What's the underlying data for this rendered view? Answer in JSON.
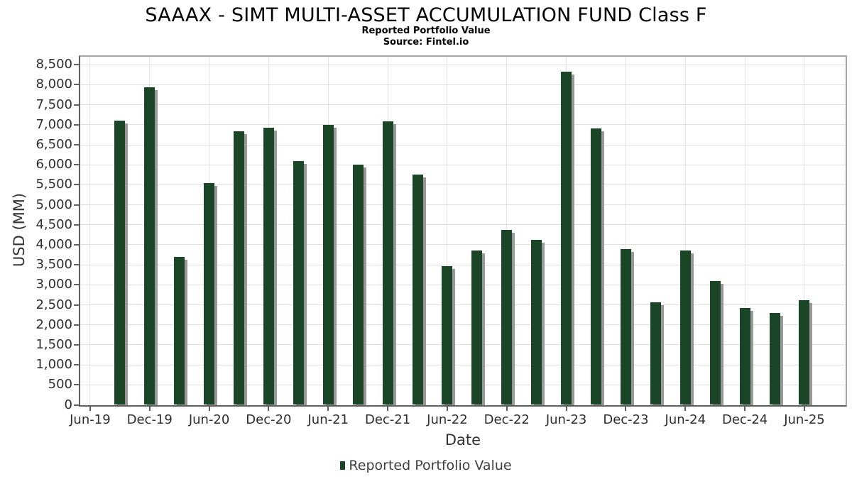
{
  "chart_data": {
    "type": "bar",
    "title": "SAAAX - SIMT MULTI-ASSET ACCUMULATION FUND Class F",
    "subtitle": "Reported Portfolio Value",
    "source": "Source: Fintel.io",
    "xlabel": "Date",
    "ylabel": "USD (MM)",
    "legend": {
      "label": "Reported Portfolio Value",
      "marker_color": "#1a4526",
      "position": "bottom-center"
    },
    "x_tick_labels": [
      "Jun-19",
      "Dec-19",
      "Jun-20",
      "Dec-20",
      "Jun-21",
      "Dec-21",
      "Jun-22",
      "Dec-22",
      "Jun-23",
      "Dec-23",
      "Jun-24",
      "Dec-24",
      "Jun-25"
    ],
    "y_ticks": [
      0,
      500,
      1000,
      1500,
      2000,
      2500,
      3000,
      3500,
      4000,
      4500,
      5000,
      5500,
      6000,
      6500,
      7000,
      7500,
      8000,
      8500
    ],
    "ylim": [
      0,
      8700
    ],
    "grid": true,
    "bar_color": "#1a4526",
    "shadow_color": "#999999",
    "categories": [
      "Sep-19",
      "Dec-19",
      "Mar-20",
      "Jun-20",
      "Sep-20",
      "Dec-20",
      "Mar-21",
      "Jun-21",
      "Sep-21",
      "Dec-21",
      "Mar-22",
      "Jun-22",
      "Sep-22",
      "Dec-22",
      "Mar-23",
      "Jun-23",
      "Sep-23",
      "Dec-23",
      "Mar-24",
      "Jun-24",
      "Sep-24",
      "Dec-24",
      "Mar-25",
      "Jun-25"
    ],
    "values": [
      7100,
      7940,
      3700,
      5540,
      6830,
      6920,
      6090,
      6990,
      6000,
      7080,
      5760,
      3460,
      3850,
      4380,
      4130,
      8320,
      6910,
      3900,
      2560,
      3850,
      3100,
      2420,
      2290,
      2620
    ]
  }
}
